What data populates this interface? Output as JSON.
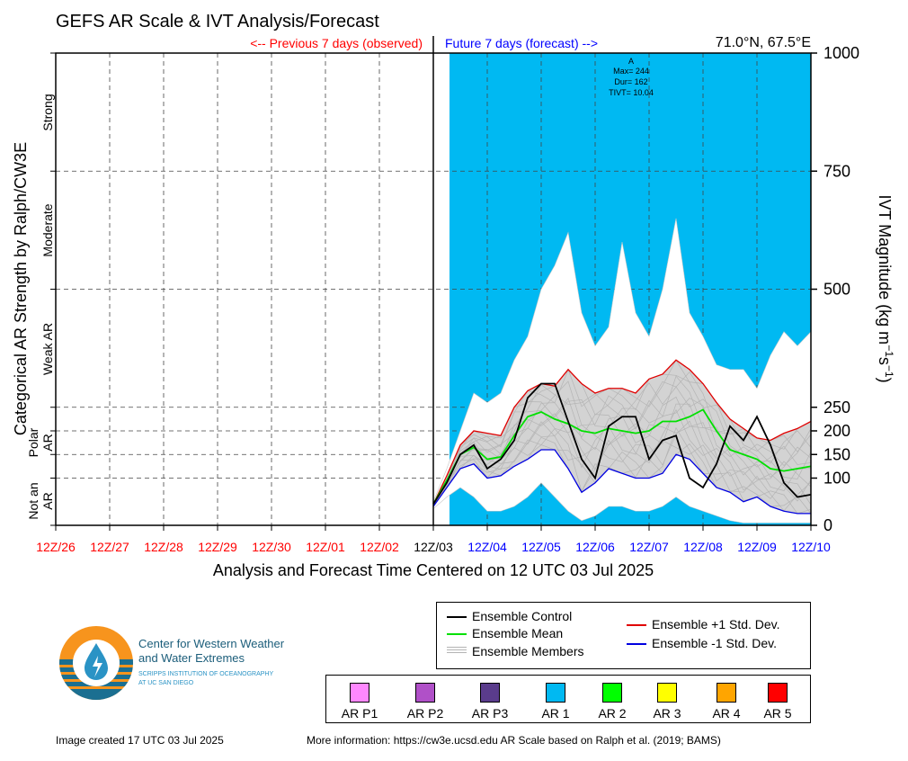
{
  "title": "GEFS AR Scale & IVT Analysis/Forecast",
  "location": "71.0°N, 67.5°E",
  "observed_label": "<-- Previous 7 days (observed)",
  "forecast_label": "Future 7 days (forecast) -->",
  "xlabel": "Analysis and Forecast Time Centered on 12 UTC 03 Jul 2025",
  "ylabel_left": "Categorical AR Strength by Ralph/CW3E",
  "ylabel_right": "IVT Magnitude (kg m",
  "ylabel_right_sup1": "−1",
  "ylabel_right_mid": "s",
  "ylabel_right_sup2": "−1",
  "ylabel_right_end": ")",
  "annotation": {
    "line1": "A",
    "line2": "Max= 244",
    "line3": "Dur= 162",
    "line4": "TIVT= 10.04"
  },
  "categories": [
    "Strong",
    "Moderate",
    "Weak AR",
    "Polar AR",
    "Not an AR"
  ],
  "category_lines": {
    "not_an_1": "Not an",
    "not_an_2": "AR",
    "polar_1": "Polar",
    "polar_2": "AR"
  },
  "legend": {
    "control": "Ensemble Control",
    "mean": "Ensemble Mean",
    "members": "Ensemble Members",
    "plus": "Ensemble +1 Std. Dev.",
    "minus": "Ensemble -1 Std. Dev."
  },
  "ar_scale": [
    {
      "label": "AR P1",
      "color": "#ff88ff"
    },
    {
      "label": "AR P2",
      "color": "#b050c8"
    },
    {
      "label": "AR P3",
      "color": "#5a3c8c"
    },
    {
      "label": "AR 1",
      "color": "#00b9f2"
    },
    {
      "label": "AR 2",
      "color": "#00ff00"
    },
    {
      "label": "AR 3",
      "color": "#ffff00"
    },
    {
      "label": "AR 4",
      "color": "#ffa500"
    },
    {
      "label": "AR 5",
      "color": "#ff0000"
    }
  ],
  "logo": {
    "line1": "Center for Western Weather",
    "line2": "and Water Extremes",
    "line3": "SCRIPPS INSTITUTION OF OCEANOGRAPHY",
    "line4": "AT UC SAN DIEGO"
  },
  "footer_left": "Image created 17 UTC 03 Jul 2025",
  "footer_right": "More information: https://cw3e.ucsd.edu AR Scale based on Ralph et al. (2019; BAMS)",
  "colors": {
    "observed": "#ff0000",
    "forecast": "#0000ff",
    "ar1_fill": "#00b9f2",
    "control": "#000000",
    "mean": "#00e000",
    "plus": "#e00000",
    "minus": "#0000e0",
    "members": "#b4b4b4",
    "spread": "#d3d3d3"
  },
  "chart_data": {
    "type": "line",
    "x_ticks": [
      "12Z/26",
      "12Z/27",
      "12Z/28",
      "12Z/29",
      "12Z/30",
      "12Z/01",
      "12Z/02",
      "12Z/03",
      "12Z/04",
      "12Z/05",
      "12Z/06",
      "12Z/07",
      "12Z/08",
      "12Z/09",
      "12Z/10"
    ],
    "x_tick_colors": [
      "observed",
      "observed",
      "observed",
      "observed",
      "observed",
      "observed",
      "observed",
      "analysis",
      "forecast",
      "forecast",
      "forecast",
      "forecast",
      "forecast",
      "forecast",
      "forecast"
    ],
    "x_range_days": [
      -7,
      7
    ],
    "y_ticks": [
      0,
      100,
      150,
      200,
      250,
      500,
      750,
      1000
    ],
    "y_ticks_labels": [
      "0",
      "100",
      "150",
      "200",
      "250",
      "500",
      "750",
      "1000"
    ],
    "ylim": [
      0,
      1000
    ],
    "category_thresholds": [
      100,
      150,
      200,
      250,
      500,
      750
    ],
    "ar1_shading_days": [
      0.3,
      7.0
    ],
    "series_time_days": [
      0,
      0.25,
      0.5,
      0.75,
      1,
      1.25,
      1.5,
      1.75,
      2,
      2.25,
      2.5,
      2.75,
      3,
      3.25,
      3.5,
      3.75,
      4,
      4.25,
      4.5,
      4.75,
      5,
      5.25,
      5.5,
      5.75,
      6,
      6.25,
      6.5,
      6.75,
      7
    ],
    "series": [
      {
        "name": "Ensemble Control",
        "key": "control",
        "values": [
          45,
          90,
          150,
          170,
          120,
          140,
          180,
          270,
          300,
          300,
          220,
          140,
          100,
          210,
          230,
          230,
          140,
          180,
          190,
          100,
          80,
          130,
          210,
          180,
          230,
          170,
          90,
          60,
          65
        ]
      },
      {
        "name": "Ensemble Mean",
        "key": "mean",
        "values": [
          45,
          95,
          150,
          165,
          140,
          145,
          190,
          230,
          240,
          225,
          215,
          200,
          195,
          205,
          200,
          195,
          200,
          220,
          220,
          230,
          245,
          200,
          160,
          150,
          140,
          120,
          115,
          120,
          125
        ]
      },
      {
        "name": "Ensemble +1 Std. Dev.",
        "key": "plus",
        "values": [
          45,
          105,
          170,
          200,
          195,
          190,
          250,
          285,
          300,
          295,
          330,
          300,
          280,
          290,
          290,
          280,
          310,
          320,
          350,
          330,
          300,
          260,
          225,
          205,
          185,
          180,
          195,
          205,
          220
        ]
      },
      {
        "name": "Ensemble -1 Std. Dev.",
        "key": "minus",
        "values": [
          40,
          80,
          120,
          130,
          100,
          105,
          125,
          140,
          160,
          160,
          120,
          70,
          90,
          120,
          110,
          100,
          100,
          110,
          150,
          140,
          110,
          80,
          70,
          50,
          60,
          40,
          30,
          25,
          25
        ]
      }
    ],
    "envelope_max": [
      50,
      120,
      200,
      280,
      260,
      280,
      350,
      400,
      500,
      550,
      620,
      450,
      380,
      420,
      600,
      450,
      400,
      500,
      650,
      450,
      400,
      340,
      330,
      330,
      290,
      360,
      410,
      380,
      410
    ],
    "envelope_min": [
      35,
      60,
      80,
      60,
      30,
      30,
      40,
      60,
      90,
      60,
      30,
      10,
      20,
      40,
      40,
      30,
      30,
      40,
      60,
      40,
      30,
      20,
      10,
      5,
      5,
      5,
      5,
      5,
      5
    ]
  }
}
